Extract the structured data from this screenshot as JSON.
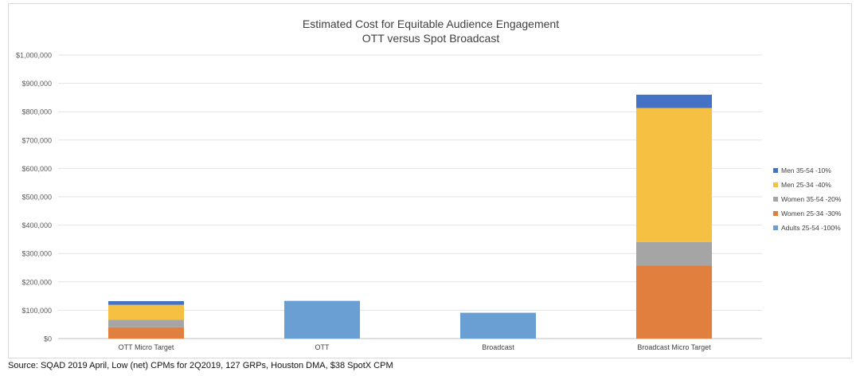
{
  "chart_data": {
    "type": "bar",
    "stacked": true,
    "title": "Estimated Cost for Equitable Audience Engagement",
    "subtitle": "OTT versus Spot Broadcast",
    "xlabel": "",
    "ylabel": "",
    "ylim": [
      0,
      1000000
    ],
    "yticks": [
      "$0",
      "$100,000",
      "$200,000",
      "$300,000",
      "$400,000",
      "$500,000",
      "$600,000",
      "$700,000",
      "$800,000",
      "$900,000",
      "$1,000,000"
    ],
    "grid": true,
    "legend_position": "right",
    "categories": [
      "OTT Micro Target",
      "OTT",
      "Broadcast",
      "Broadcast Micro Target"
    ],
    "series": [
      {
        "name": "Adults 25-54 -100%",
        "color": "#6a9fd4",
        "values": [
          0,
          133000,
          91000,
          0
        ]
      },
      {
        "name": "Women 25-34 -30%",
        "color": "#e07f3e",
        "values": [
          40000,
          0,
          0,
          257000
        ]
      },
      {
        "name": "Women 35-54 -20%",
        "color": "#a5a5a5",
        "values": [
          26000,
          0,
          0,
          83000
        ]
      },
      {
        "name": "Men 25-34 -40%",
        "color": "#f6c142",
        "values": [
          53000,
          0,
          0,
          473000
        ]
      },
      {
        "name": "Men 35-54 -10%",
        "color": "#4472c4",
        "values": [
          13000,
          0,
          0,
          47000
        ]
      }
    ],
    "legend_order": [
      4,
      3,
      2,
      1,
      0
    ]
  },
  "source_note": "Source: SQAD 2019 April, Low (net) CPMs for 2Q2019, 127 GRPs, Houston DMA, $38 SpotX  CPM"
}
